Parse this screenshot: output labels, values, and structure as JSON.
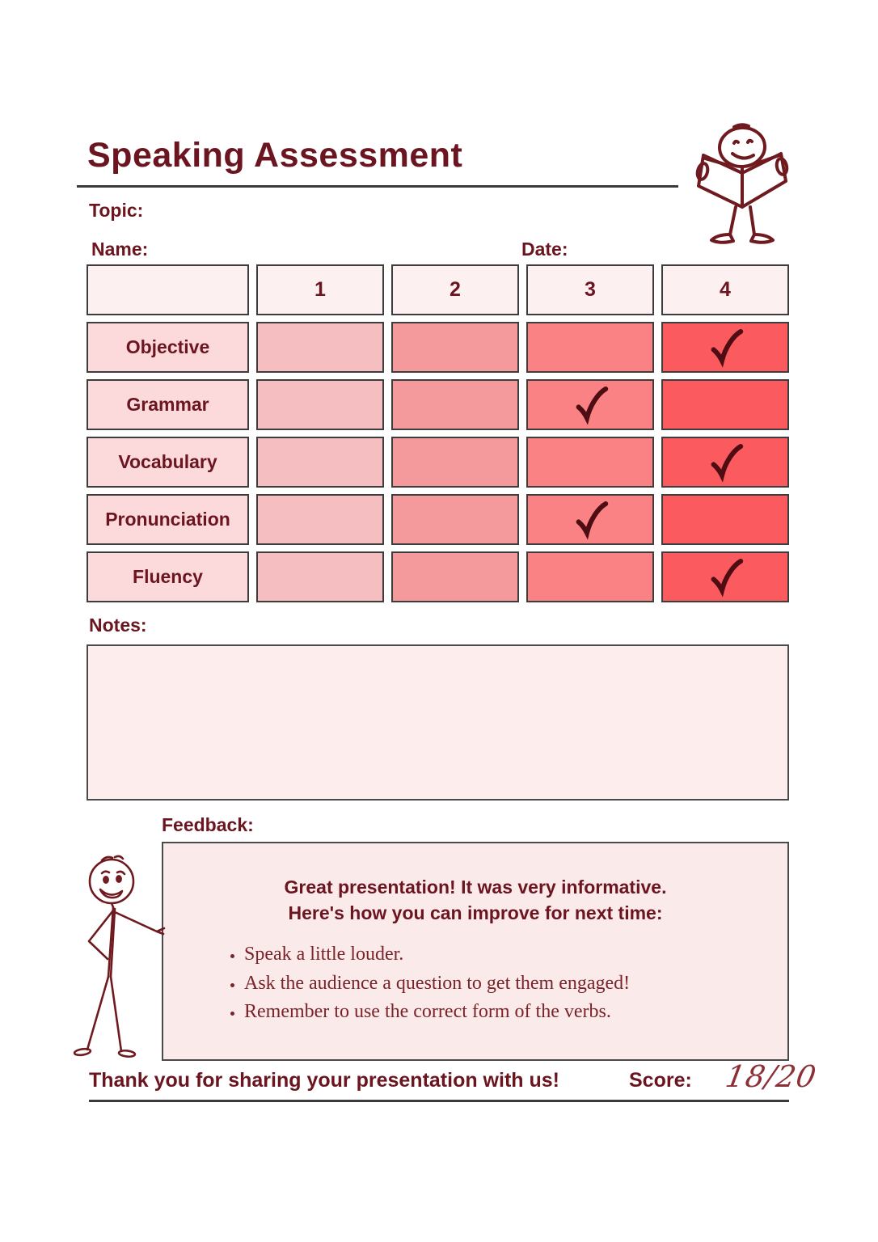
{
  "header": {
    "title": "Speaking Assessment",
    "topic_label": "Topic:",
    "name_label": "Name:",
    "date_label": "Date:"
  },
  "rubric": {
    "columns": [
      "1",
      "2",
      "3",
      "4"
    ],
    "rows": [
      {
        "label": "Objective",
        "checked": 4
      },
      {
        "label": "Grammar",
        "checked": 3
      },
      {
        "label": "Vocabulary",
        "checked": 4
      },
      {
        "label": "Pronunciation",
        "checked": 3
      },
      {
        "label": "Fluency",
        "checked": 4
      }
    ],
    "check_glyph": "✓"
  },
  "notes": {
    "label": "Notes:"
  },
  "feedback": {
    "label": "Feedback:",
    "heading": [
      "Great presentation! It was very informative.",
      "Here's how you can improve for next time:"
    ],
    "bullets": [
      "Speak a little louder.",
      "Ask the audience a question to get them engaged!",
      "Remember to use the correct form of the verbs."
    ]
  },
  "footer": {
    "thank_you": "Thank you for sharing your presentation with us!",
    "score_label": "Score:",
    "score_value": "18/20"
  },
  "colors": {
    "maroon_text": "#6b1520",
    "check": "#4e0d12",
    "header_cell_bg": "#fdf0f0",
    "row_label_bg": "#fcd9da",
    "level_colors": [
      "#f5bfc1",
      "#f49a9c",
      "#fa8285",
      "#fb5a5e"
    ],
    "notes_bg": "#fdeded",
    "feedback_bg": "#fbeaea"
  },
  "icons": {
    "reading_figure": "stick-figure-reading-icon",
    "presenting_figure": "stick-figure-presenting-icon",
    "check": "check-icon"
  }
}
